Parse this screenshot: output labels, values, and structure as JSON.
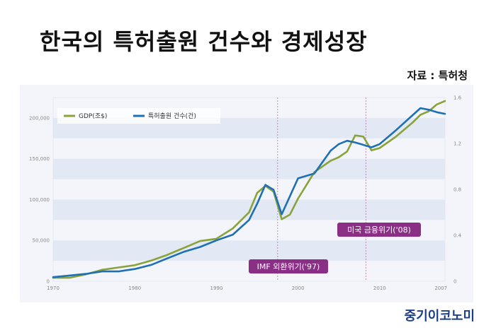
{
  "title": "한국의 특허출원 건수와 경제성장",
  "source": "자료 : 특허청",
  "brand": "중기이코노미",
  "colors": {
    "gdp": "#8aa23a",
    "patent": "#1f6fb4",
    "annotation": "#8b2e86",
    "band": "#e3e9f4"
  },
  "chart_data": {
    "type": "line",
    "legend": [
      "GDP(조$)",
      "특허출원 건수(건)"
    ],
    "legend_placement": "top-left",
    "x_ticks": [
      "1970",
      "1980",
      "1990",
      "2000",
      "2010",
      "2007"
    ],
    "y_left_ticks": [
      "0",
      "50,000",
      "100,000",
      "150,000",
      "200,000"
    ],
    "y_right_ticks": [
      "0",
      "0.4",
      "0.8",
      "1.2",
      "1.6"
    ],
    "y_left_range": [
      0,
      225000
    ],
    "y_right_range": [
      0,
      1.6
    ],
    "x_range": [
      1970,
      2018
    ],
    "annotations": [
      "IMF 외환위기('97)",
      "미국 금융위기('08)"
    ],
    "series": [
      {
        "name": "GDP(조$)",
        "axis": "right",
        "x": [
          1970,
          1972,
          1974,
          1976,
          1978,
          1980,
          1982,
          1984,
          1986,
          1988,
          1990,
          1992,
          1994,
          1995,
          1996,
          1997,
          1998,
          1999,
          2000,
          2002,
          2004,
          2005,
          2006,
          2007,
          2008,
          2009,
          2010,
          2012,
          2014,
          2015,
          2016,
          2017,
          2018
        ],
        "values": [
          0.03,
          0.03,
          0.06,
          0.1,
          0.12,
          0.14,
          0.18,
          0.23,
          0.29,
          0.35,
          0.37,
          0.46,
          0.6,
          0.77,
          0.83,
          0.78,
          0.54,
          0.58,
          0.72,
          0.95,
          1.05,
          1.08,
          1.13,
          1.27,
          1.26,
          1.14,
          1.16,
          1.26,
          1.38,
          1.45,
          1.48,
          1.54,
          1.57
        ]
      },
      {
        "name": "특허출원 건수(건)",
        "axis": "left",
        "x": [
          1970,
          1972,
          1974,
          1976,
          1978,
          1980,
          1982,
          1984,
          1986,
          1988,
          1990,
          1992,
          1994,
          1995,
          1996,
          1997,
          1998,
          1999,
          2000,
          2002,
          2004,
          2005,
          2006,
          2007,
          2008,
          2009,
          2010,
          2012,
          2014,
          2015,
          2016,
          2017,
          2018
        ],
        "values": [
          5000,
          7000,
          9000,
          12000,
          12000,
          15000,
          20000,
          28000,
          36000,
          42000,
          50000,
          57000,
          75000,
          95000,
          118000,
          112000,
          82000,
          104000,
          126000,
          132000,
          160000,
          168000,
          172000,
          170000,
          167000,
          164000,
          168000,
          185000,
          203000,
          212000,
          210000,
          207000,
          205000
        ]
      }
    ]
  }
}
